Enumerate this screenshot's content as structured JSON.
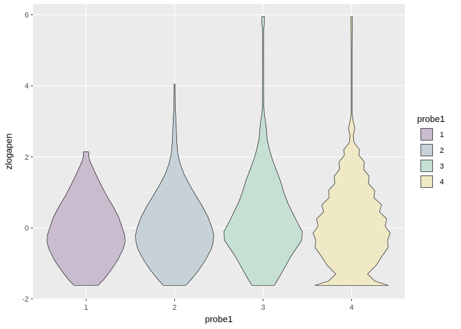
{
  "chart_data": {
    "type": "violin",
    "xlabel": "probe1",
    "ylabel": "zlogapen",
    "ylim": [
      -2.0,
      6.3
    ],
    "yticks": [
      -2,
      0,
      2,
      4,
      6
    ],
    "categories": [
      "1",
      "2",
      "3",
      "4"
    ],
    "grid": true,
    "legend": {
      "title": "probe1",
      "position": "right",
      "entries": [
        "1",
        "2",
        "3",
        "4"
      ]
    },
    "series": [
      {
        "category": "1",
        "color": "#c9bccf",
        "profile": [
          [
            -1.62,
            0.3
          ],
          [
            -1.45,
            0.45
          ],
          [
            -1.2,
            0.62
          ],
          [
            -0.9,
            0.8
          ],
          [
            -0.6,
            0.93
          ],
          [
            -0.4,
            0.98
          ],
          [
            -0.2,
            0.97
          ],
          [
            0,
            0.91
          ],
          [
            0.3,
            0.82
          ],
          [
            0.6,
            0.68
          ],
          [
            0.9,
            0.52
          ],
          [
            1.2,
            0.38
          ],
          [
            1.5,
            0.25
          ],
          [
            1.75,
            0.15
          ],
          [
            1.9,
            0.09
          ],
          [
            2.0,
            0.07
          ],
          [
            2.1,
            0.07
          ],
          [
            2.14,
            0.06
          ]
        ]
      },
      {
        "category": "2",
        "color": "#c7d2d8",
        "profile": [
          [
            -1.62,
            0.28
          ],
          [
            -1.45,
            0.42
          ],
          [
            -1.2,
            0.6
          ],
          [
            -0.9,
            0.78
          ],
          [
            -0.6,
            0.92
          ],
          [
            -0.4,
            0.97
          ],
          [
            -0.2,
            0.98
          ],
          [
            0,
            0.94
          ],
          [
            0.3,
            0.84
          ],
          [
            0.6,
            0.7
          ],
          [
            0.9,
            0.54
          ],
          [
            1.2,
            0.38
          ],
          [
            1.5,
            0.24
          ],
          [
            1.8,
            0.14
          ],
          [
            2.1,
            0.08
          ],
          [
            2.5,
            0.05
          ],
          [
            2.9,
            0.04
          ],
          [
            3.2,
            0.025
          ],
          [
            3.5,
            0.015
          ],
          [
            3.8,
            0.012
          ],
          [
            4.05,
            0.01
          ]
        ]
      },
      {
        "category": "3",
        "color": "#c6e1d4",
        "profile": [
          [
            -1.62,
            0.28
          ],
          [
            -1.4,
            0.4
          ],
          [
            -1.1,
            0.55
          ],
          [
            -0.8,
            0.7
          ],
          [
            -0.55,
            0.85
          ],
          [
            -0.35,
            0.97
          ],
          [
            -0.1,
            0.98
          ],
          [
            0.15,
            0.86
          ],
          [
            0.4,
            0.75
          ],
          [
            0.7,
            0.62
          ],
          [
            1.0,
            0.52
          ],
          [
            1.3,
            0.44
          ],
          [
            1.6,
            0.34
          ],
          [
            1.9,
            0.24
          ],
          [
            2.2,
            0.16
          ],
          [
            2.5,
            0.1
          ],
          [
            2.8,
            0.08
          ],
          [
            3.0,
            0.06
          ],
          [
            3.2,
            0.03
          ],
          [
            3.5,
            0.015
          ],
          [
            4.5,
            0.012
          ],
          [
            5.5,
            0.012
          ],
          [
            5.75,
            0.03
          ],
          [
            5.95,
            0.03
          ]
        ]
      },
      {
        "category": "4",
        "color": "#f0e9c6",
        "profile": [
          [
            -1.62,
            0.92
          ],
          [
            -1.5,
            0.58
          ],
          [
            -1.3,
            0.4
          ],
          [
            -1.05,
            0.62
          ],
          [
            -0.8,
            0.76
          ],
          [
            -0.55,
            0.92
          ],
          [
            -0.35,
            0.9
          ],
          [
            -0.15,
            0.97
          ],
          [
            0.05,
            0.84
          ],
          [
            0.25,
            0.88
          ],
          [
            0.45,
            0.7
          ],
          [
            0.65,
            0.75
          ],
          [
            0.85,
            0.56
          ],
          [
            1.05,
            0.58
          ],
          [
            1.25,
            0.42
          ],
          [
            1.45,
            0.44
          ],
          [
            1.65,
            0.3
          ],
          [
            1.85,
            0.32
          ],
          [
            2.05,
            0.18
          ],
          [
            2.2,
            0.2
          ],
          [
            2.4,
            0.06
          ],
          [
            2.6,
            0.04
          ],
          [
            2.8,
            0.08
          ],
          [
            3.0,
            0.04
          ],
          [
            3.2,
            0.01
          ],
          [
            4.0,
            0.01
          ],
          [
            5.0,
            0.01
          ],
          [
            5.85,
            0.015
          ],
          [
            5.95,
            0.015
          ]
        ]
      }
    ]
  }
}
